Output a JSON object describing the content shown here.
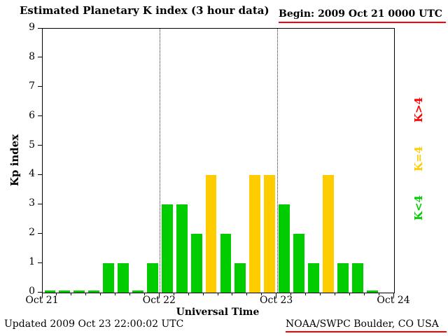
{
  "title": "Estimated Planetary K index (3 hour data)",
  "header": {
    "begin": "Begin: 2009 Oct 21 0000 UTC"
  },
  "footer": {
    "updated": "Updated 2009 Oct 23 22:00:02 UTC",
    "source": "NOAA/SWPC Boulder, CO USA"
  },
  "legend": [
    {
      "label": "K>4",
      "color": "#ff0000"
    },
    {
      "label": "K=4",
      "color": "#ffcc00"
    },
    {
      "label": "K<4",
      "color": "#00cc00"
    }
  ],
  "colors": {
    "kp_below_4": "#00cc00",
    "kp_equal_4": "#ffcc00",
    "kp_above_4": "#ff0000",
    "accent_line": "#ff0000",
    "grid_line": "#333333"
  },
  "chart_data": {
    "type": "bar",
    "title": "Estimated Planetary K index (3 hour data)",
    "xlabel": "Universal Time",
    "ylabel": "Kp index",
    "ylim": [
      0,
      9
    ],
    "y_ticks": [
      0,
      1,
      2,
      3,
      4,
      5,
      6,
      7,
      8,
      9
    ],
    "x_ticks": [
      "Oct 21",
      "Oct 22",
      "Oct 23",
      "Oct 24"
    ],
    "bin_hours": 3,
    "slots_per_day": 8,
    "days": 3,
    "values": [
      0,
      0,
      0,
      0,
      1,
      1,
      0,
      1,
      3,
      3,
      2,
      4,
      2,
      1,
      4,
      4,
      3,
      2,
      1,
      4,
      1,
      1,
      0
    ],
    "grid": "vertical dotted lines at day boundaries",
    "legend_position": "right margin, rotated 90 degrees",
    "color_rule": "green if K<4, yellow if K=4, red if K>4"
  }
}
